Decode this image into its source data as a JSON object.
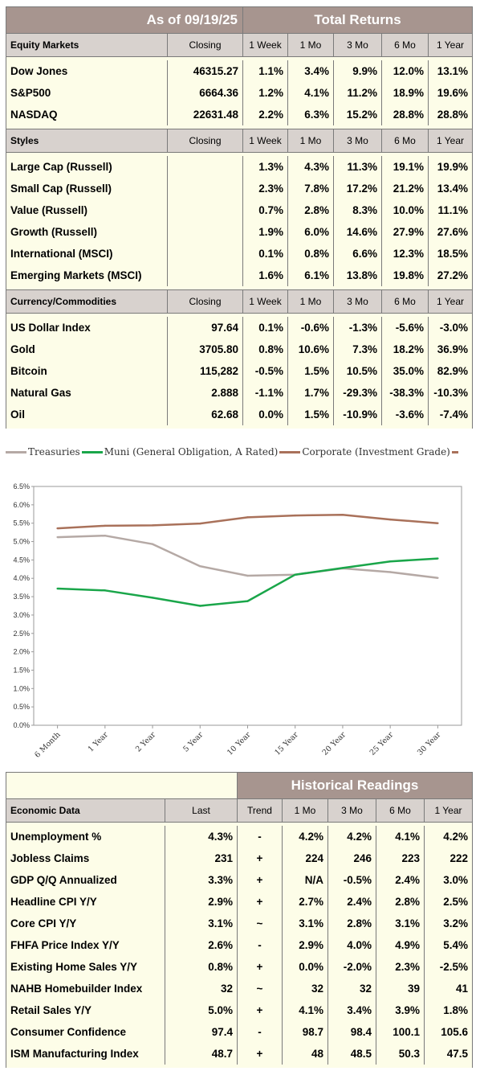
{
  "top_table": {
    "as_of_label": "As of  09/19/25",
    "title": "Total Returns",
    "sections": [
      {
        "header": [
          "Equity Markets",
          "Closing",
          "1 Week",
          "1 Mo",
          "3 Mo",
          "6 Mo",
          "1 Year"
        ],
        "rows": [
          [
            "Dow Jones",
            "46315.27",
            "1.1%",
            "3.4%",
            "9.9%",
            "12.0%",
            "13.1%"
          ],
          [
            "S&P500",
            "6664.36",
            "1.2%",
            "4.1%",
            "11.2%",
            "18.9%",
            "19.6%"
          ],
          [
            "NASDAQ",
            "22631.48",
            "2.2%",
            "6.3%",
            "15.2%",
            "28.8%",
            "28.8%"
          ]
        ]
      },
      {
        "header": [
          "Styles",
          "Closing",
          "1 Week",
          "1 Mo",
          "3 Mo",
          "6 Mo",
          "1 Year"
        ],
        "rows": [
          [
            "Large Cap (Russell)",
            "",
            "1.3%",
            "4.3%",
            "11.3%",
            "19.1%",
            "19.9%"
          ],
          [
            "Small Cap (Russell)",
            "",
            "2.3%",
            "7.8%",
            "17.2%",
            "21.2%",
            "13.4%"
          ],
          [
            "Value (Russell)",
            "",
            "0.7%",
            "2.8%",
            "8.3%",
            "10.0%",
            "11.1%"
          ],
          [
            "Growth (Russell)",
            "",
            "1.9%",
            "6.0%",
            "14.6%",
            "27.9%",
            "27.6%"
          ],
          [
            "International (MSCI)",
            "",
            "0.1%",
            "0.8%",
            "6.6%",
            "12.3%",
            "18.5%"
          ],
          [
            "Emerging Markets (MSCI)",
            "",
            "1.6%",
            "6.1%",
            "13.8%",
            "19.8%",
            "27.2%"
          ]
        ]
      },
      {
        "header": [
          "Currency/Commodities",
          "Closing",
          "1 Week",
          "1 Mo",
          "3 Mo",
          "6 Mo",
          "1 Year"
        ],
        "rows": [
          [
            "US Dollar Index",
            "97.64",
            "0.1%",
            "-0.6%",
            "-1.3%",
            "-5.6%",
            "-3.0%"
          ],
          [
            "Gold",
            "3705.80",
            "0.8%",
            "10.6%",
            "7.3%",
            "18.2%",
            "36.9%"
          ],
          [
            "Bitcoin",
            "115,282",
            "-0.5%",
            "1.5%",
            "10.5%",
            "35.0%",
            "82.9%"
          ],
          [
            "Natural Gas",
            "2.888",
            "-1.1%",
            "1.7%",
            "-29.3%",
            "-38.3%",
            "-10.3%"
          ],
          [
            "Oil",
            "62.68",
            "0.0%",
            "1.5%",
            "-10.9%",
            "-3.6%",
            "-7.4%"
          ]
        ]
      }
    ]
  },
  "chart_data": {
    "type": "line",
    "title": "",
    "xlabel": "",
    "ylabel": "",
    "categories": [
      "6 Month",
      "1 Year",
      "2 Year",
      "5 Year",
      "10 Year",
      "15 Year",
      "20 Year",
      "25 Year",
      "30 Year"
    ],
    "ylim": [
      0.0,
      6.5
    ],
    "yticks": [
      "0.0%",
      "0.5%",
      "1.0%",
      "1.5%",
      "2.0%",
      "2.5%",
      "3.0%",
      "3.5%",
      "4.0%",
      "4.5%",
      "5.0%",
      "5.5%",
      "6.0%",
      "6.5%"
    ],
    "grid": false,
    "legend_position": "top",
    "series": [
      {
        "name": "Treasuries",
        "color": "#b5a9a5",
        "values": [
          5.12,
          5.16,
          4.93,
          4.33,
          4.07,
          4.1,
          4.27,
          4.17,
          4.01
        ]
      },
      {
        "name": "Muni (General Obligation, A Rated)",
        "color": "#1aa64a",
        "values": [
          3.72,
          3.67,
          3.47,
          3.25,
          3.38,
          4.1,
          4.28,
          4.46,
          4.54
        ]
      },
      {
        "name": "Corporate (Investment Grade)",
        "color": "#a9715a",
        "values": [
          5.36,
          5.43,
          5.44,
          5.49,
          5.66,
          5.71,
          5.73,
          5.6,
          5.5
        ]
      }
    ]
  },
  "bottom_table": {
    "title": "Historical Readings",
    "header": [
      "Economic Data",
      "Last",
      "Trend",
      "1 Mo",
      "3 Mo",
      "6 Mo",
      "1 Year"
    ],
    "rows": [
      [
        "Unemployment %",
        "4.3%",
        "-",
        "4.2%",
        "4.2%",
        "4.1%",
        "4.2%"
      ],
      [
        "Jobless Claims",
        "231",
        "+",
        "224",
        "246",
        "223",
        "222"
      ],
      [
        "GDP Q/Q Annualized",
        "3.3%",
        "+",
        "N/A",
        "-0.5%",
        "2.4%",
        "3.0%"
      ],
      [
        "Headline CPI Y/Y",
        "2.9%",
        "+",
        "2.7%",
        "2.4%",
        "2.8%",
        "2.5%"
      ],
      [
        "Core CPI Y/Y",
        "3.1%",
        "~",
        "3.1%",
        "2.8%",
        "3.1%",
        "3.2%"
      ],
      [
        "FHFA Price Index Y/Y",
        "2.6%",
        "-",
        "2.9%",
        "4.0%",
        "4.9%",
        "5.4%"
      ],
      [
        "Existing Home Sales Y/Y",
        "0.8%",
        "+",
        "0.0%",
        "-2.0%",
        "2.3%",
        "-2.5%"
      ],
      [
        "NAHB Homebuilder Index",
        "32",
        "~",
        "32",
        "32",
        "39",
        "41"
      ],
      [
        "Retail Sales Y/Y",
        "5.0%",
        "+",
        "4.1%",
        "3.4%",
        "3.9%",
        "1.8%"
      ],
      [
        "Consumer Confidence",
        "97.4",
        "-",
        "98.7",
        "98.4",
        "100.1",
        "105.6"
      ],
      [
        "ISM Manufacturing Index",
        "48.7",
        "+",
        "48",
        "48.5",
        "50.3",
        "47.5"
      ]
    ]
  },
  "colors": {
    "title_bg": "#a7958f",
    "header_bg": "#d8d2ce",
    "row_bg": "#fdfde8",
    "negative": "#c00000",
    "trend_up": "#1a9b3a",
    "trend_down": "#c00000"
  }
}
